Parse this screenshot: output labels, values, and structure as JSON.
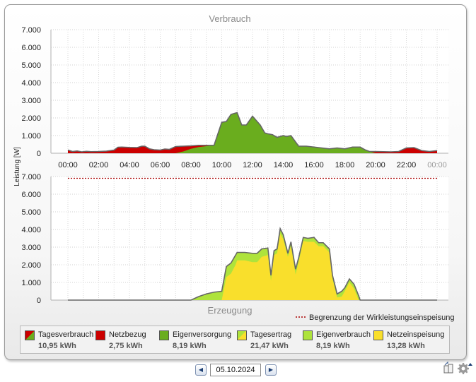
{
  "colors": {
    "netzbezug": "#cc0000",
    "eigenversorgung": "#6aad1e",
    "eigenverbrauch": "#aee33c",
    "netzeinspeisung": "#f9df2c",
    "limit_line": "#a80000",
    "outline": "#666666"
  },
  "y_axis_label": "Leistung [W]",
  "legend": [
    {
      "label": "Tagesverbrauch",
      "value": "10,95 kWh",
      "swatch": "split-red-green"
    },
    {
      "label": "Netzbezug",
      "value": "2,75 kWh",
      "swatch": "red"
    },
    {
      "label": "Eigenversorgung",
      "value": "8,19 kWh",
      "swatch": "green"
    },
    {
      "label": "Tagesertrag",
      "value": "21,47 kWh",
      "swatch": "split-lime-yellow"
    },
    {
      "label": "Eigenverbrauch",
      "value": "8,19 kWh",
      "swatch": "lime"
    },
    {
      "label": "Netzeinspeisung",
      "value": "13,28 kWh",
      "swatch": "yellow"
    }
  ],
  "date_nav": {
    "date": "05.10.2024",
    "prev_icon": "triangle-left-icon",
    "next_icon": "triangle-right-icon"
  },
  "corner_icons": [
    "export-icon",
    "settings-gear-icon"
  ],
  "chart_data": [
    {
      "type": "area",
      "title": "Verbrauch",
      "ylabel": "Leistung [W]",
      "ylim": [
        0,
        7000
      ],
      "yticks": [
        "0",
        "1.000",
        "2.000",
        "3.000",
        "4.000",
        "5.000",
        "6.000",
        "7.000"
      ],
      "xticks": [
        "00:00",
        "02:00",
        "04:00",
        "06:00",
        "08:00",
        "10:00",
        "12:00",
        "14:00",
        "16:00",
        "18:00",
        "20:00",
        "22:00",
        "00:00"
      ],
      "grid": true,
      "x_hours": [
        0,
        0.3,
        0.6,
        0.9,
        1.2,
        1.5,
        2,
        2.5,
        3,
        3.25,
        3.5,
        4,
        4.5,
        4.8,
        5,
        5.3,
        5.6,
        6,
        6.3,
        6.6,
        7,
        7.5,
        8,
        8.5,
        9,
        9.5,
        10,
        10.3,
        10.6,
        11,
        11.3,
        11.6,
        12,
        12.2,
        12.5,
        12.8,
        13,
        13.3,
        13.6,
        14,
        14.2,
        14.5,
        15,
        15.5,
        16,
        16.5,
        17,
        17.5,
        18,
        18.5,
        19,
        19.3,
        19.6,
        20,
        20.5,
        21,
        21.5,
        22,
        22.5,
        23,
        23.5,
        24
      ],
      "series": [
        {
          "name": "Netzbezug",
          "values": [
            180,
            100,
            130,
            80,
            110,
            90,
            100,
            120,
            180,
            340,
            350,
            330,
            320,
            400,
            400,
            250,
            200,
            180,
            240,
            220,
            380,
            400,
            420,
            450,
            450,
            400,
            420,
            450,
            350,
            300,
            250,
            200,
            150,
            150,
            120,
            100,
            100,
            100,
            100,
            80,
            80,
            80,
            50,
            30,
            30,
            30,
            30,
            30,
            50,
            60,
            80,
            90,
            100,
            100,
            90,
            80,
            100,
            300,
            320,
            150,
            100,
            150
          ]
        },
        {
          "name": "Eigenversorgung",
          "values": [
            0,
            0,
            0,
            0,
            0,
            0,
            0,
            0,
            0,
            0,
            0,
            0,
            0,
            0,
            0,
            0,
            0,
            0,
            0,
            0,
            0,
            100,
            250,
            350,
            400,
            450,
            1750,
            1800,
            2200,
            2300,
            1600,
            1600,
            2100,
            1900,
            1600,
            1150,
            1100,
            1050,
            900,
            1000,
            950,
            1000,
            400,
            400,
            350,
            300,
            250,
            300,
            250,
            350,
            350,
            200,
            100,
            0,
            0,
            0,
            0,
            0,
            0,
            0,
            0,
            0
          ]
        }
      ]
    },
    {
      "type": "area",
      "title": "Erzeugung",
      "ylabel": "Leistung [W]",
      "ylim": [
        0,
        7000
      ],
      "yticks": [
        "0",
        "1.000",
        "2.000",
        "3.000",
        "4.000",
        "5.000",
        "6.000",
        "7.000"
      ],
      "grid": true,
      "limit_line": {
        "label": "Begrenzung der Wirkleistungseinspeisung",
        "value": 6900
      },
      "x_hours": [
        0,
        8,
        8.5,
        9,
        9.5,
        10,
        10.3,
        10.6,
        10.9,
        11,
        11.5,
        12,
        12.3,
        12.6,
        13,
        13.2,
        13.4,
        13.6,
        13.8,
        14,
        14.3,
        14.5,
        14.8,
        15,
        15.3,
        15.6,
        16,
        16.3,
        16.6,
        17,
        17.2,
        17.5,
        17.8,
        18,
        18.3,
        18.6,
        18.9,
        19,
        19.3,
        19.6,
        20,
        21,
        22,
        24
      ],
      "series": [
        {
          "name": "Eigenverbrauch",
          "values": [
            0,
            0,
            200,
            350,
            450,
            500,
            600,
            600,
            550,
            450,
            450,
            500,
            500,
            450,
            400,
            300,
            250,
            250,
            300,
            250,
            200,
            250,
            300,
            250,
            200,
            200,
            250,
            200,
            200,
            200,
            200,
            200,
            300,
            200,
            200,
            250,
            250,
            0,
            0,
            0,
            0,
            0,
            0,
            0
          ]
        },
        {
          "name": "Netzeinspeisung",
          "values": [
            0,
            0,
            0,
            0,
            0,
            0,
            1300,
            1500,
            2000,
            2250,
            2250,
            2150,
            2150,
            2450,
            2550,
            1100,
            2550,
            2650,
            3750,
            3450,
            2450,
            3050,
            1450,
            2150,
            3350,
            3300,
            3300,
            3050,
            3050,
            2700,
            1200,
            150,
            200,
            500,
            1000,
            650,
            0,
            0,
            0,
            0,
            0,
            0,
            0,
            0
          ]
        }
      ]
    }
  ]
}
